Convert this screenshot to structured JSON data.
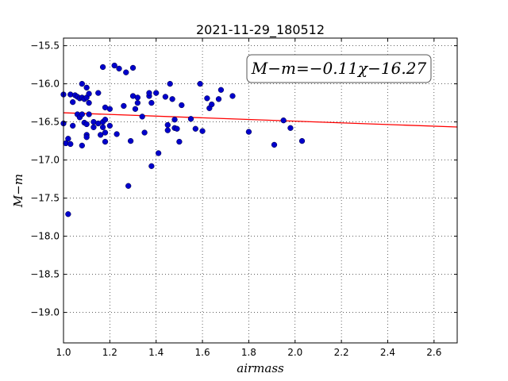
{
  "chart_data": {
    "type": "scatter",
    "title": "2021-11-29_180512",
    "xlabel": "airmass",
    "ylabel": "M−m",
    "xlim": [
      1.0,
      2.7
    ],
    "ylim": [
      -19.4,
      -15.4
    ],
    "y_inverted": true,
    "grid": true,
    "x_ticks": [
      "1.0",
      "1.2",
      "1.4",
      "1.6",
      "1.8",
      "2.0",
      "2.2",
      "2.4",
      "2.6"
    ],
    "y_ticks": [
      "−15.5",
      "−16.0",
      "−16.5",
      "−17.0",
      "−17.5",
      "−18.0",
      "−18.5",
      "−19.0"
    ],
    "annotation": "M−m=−0.11χ−16.27",
    "colors": {
      "points": "#0000cc",
      "fit_line": "#ff0000"
    },
    "fit": {
      "slope": -0.11,
      "intercept": -16.27
    },
    "series": [
      {
        "points": [
          [
            1.0,
            -16.14
          ],
          [
            1.0,
            -16.52
          ],
          [
            1.01,
            -16.78
          ],
          [
            1.02,
            -16.72
          ],
          [
            1.02,
            -17.71
          ],
          [
            1.03,
            -16.79
          ],
          [
            1.03,
            -16.14
          ],
          [
            1.04,
            -16.24
          ],
          [
            1.04,
            -16.55
          ],
          [
            1.05,
            -16.15
          ],
          [
            1.06,
            -16.17
          ],
          [
            1.06,
            -16.4
          ],
          [
            1.07,
            -16.44
          ],
          [
            1.07,
            -16.19
          ],
          [
            1.08,
            -16.0
          ],
          [
            1.08,
            -16.81
          ],
          [
            1.08,
            -16.18
          ],
          [
            1.08,
            -16.4
          ],
          [
            1.09,
            -16.51
          ],
          [
            1.09,
            -16.2
          ],
          [
            1.1,
            -16.53
          ],
          [
            1.1,
            -16.05
          ],
          [
            1.1,
            -16.67
          ],
          [
            1.1,
            -16.7
          ],
          [
            1.1,
            -16.18
          ],
          [
            1.11,
            -16.13
          ],
          [
            1.11,
            -16.4
          ],
          [
            1.11,
            -16.25
          ],
          [
            1.13,
            -16.57
          ],
          [
            1.13,
            -16.5
          ],
          [
            1.15,
            -16.52
          ],
          [
            1.15,
            -16.12
          ],
          [
            1.16,
            -16.67
          ],
          [
            1.17,
            -15.78
          ],
          [
            1.17,
            -16.57
          ],
          [
            1.17,
            -16.5
          ],
          [
            1.18,
            -16.31
          ],
          [
            1.18,
            -16.76
          ],
          [
            1.18,
            -16.47
          ],
          [
            1.18,
            -16.64
          ],
          [
            1.2,
            -16.33
          ],
          [
            1.2,
            -16.55
          ],
          [
            1.22,
            -15.76
          ],
          [
            1.23,
            -16.66
          ],
          [
            1.24,
            -15.8
          ],
          [
            1.26,
            -16.29
          ],
          [
            1.27,
            -15.85
          ],
          [
            1.28,
            -17.34
          ],
          [
            1.29,
            -16.75
          ],
          [
            1.3,
            -15.79
          ],
          [
            1.3,
            -16.16
          ],
          [
            1.31,
            -16.33
          ],
          [
            1.32,
            -16.25
          ],
          [
            1.32,
            -16.18
          ],
          [
            1.34,
            -16.43
          ],
          [
            1.35,
            -16.64
          ],
          [
            1.37,
            -16.16
          ],
          [
            1.37,
            -16.12
          ],
          [
            1.38,
            -16.25
          ],
          [
            1.38,
            -17.08
          ],
          [
            1.4,
            -16.12
          ],
          [
            1.41,
            -16.91
          ],
          [
            1.44,
            -16.17
          ],
          [
            1.45,
            -16.61
          ],
          [
            1.45,
            -16.54
          ],
          [
            1.46,
            -16.0
          ],
          [
            1.47,
            -16.2
          ],
          [
            1.48,
            -16.58
          ],
          [
            1.48,
            -16.47
          ],
          [
            1.49,
            -16.59
          ],
          [
            1.5,
            -16.76
          ],
          [
            1.51,
            -16.28
          ],
          [
            1.55,
            -16.46
          ],
          [
            1.57,
            -16.59
          ],
          [
            1.59,
            -16.0
          ],
          [
            1.6,
            -16.62
          ],
          [
            1.62,
            -16.19
          ],
          [
            1.63,
            -16.32
          ],
          [
            1.64,
            -16.27
          ],
          [
            1.67,
            -16.2
          ],
          [
            1.68,
            -16.08
          ],
          [
            1.73,
            -16.16
          ],
          [
            1.8,
            -16.63
          ],
          [
            1.91,
            -16.8
          ],
          [
            1.95,
            -16.48
          ],
          [
            1.98,
            -16.58
          ],
          [
            2.03,
            -16.75
          ]
        ]
      }
    ]
  }
}
